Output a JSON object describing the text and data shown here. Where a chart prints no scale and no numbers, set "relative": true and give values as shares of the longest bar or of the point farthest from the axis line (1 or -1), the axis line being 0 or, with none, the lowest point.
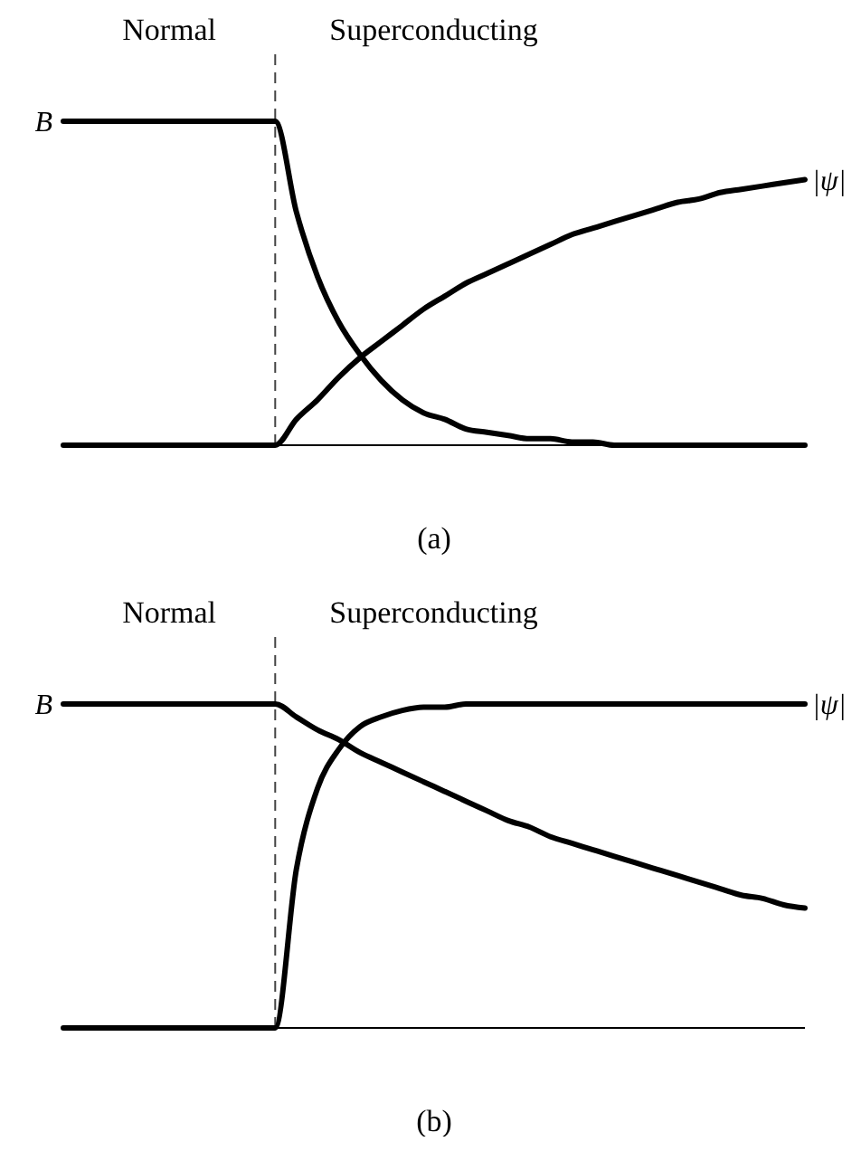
{
  "chart_data": [
    {
      "type": "line",
      "relative": true,
      "categories": [
        null,
        null,
        null,
        null,
        null,
        null,
        null,
        null,
        null,
        null,
        null,
        null,
        null,
        null,
        null,
        null,
        null,
        null,
        null,
        null,
        null,
        null,
        null,
        null,
        null,
        null,
        null,
        null,
        null,
        null,
        null,
        null,
        null,
        null,
        null,
        null
      ],
      "series": [
        {
          "name": "B",
          "color": "#000000",
          "values": [
            1,
            1,
            1,
            1,
            1,
            1,
            1,
            1,
            1,
            1,
            1,
            0.72,
            0.52,
            0.38,
            0.28,
            0.2,
            0.14,
            0.1,
            0.08,
            0.05,
            0.04,
            0.03,
            0.02,
            0.02,
            0.01,
            0.01,
            0,
            0,
            0,
            0,
            0,
            0,
            0,
            0,
            0,
            0
          ]
        },
        {
          "name": "|ψ|",
          "color": "#000000",
          "values": [
            0,
            0,
            0,
            0,
            0,
            0,
            0,
            0,
            0,
            0,
            0,
            0.08,
            0.14,
            0.21,
            0.27,
            0.32,
            0.37,
            0.42,
            0.46,
            0.5,
            0.53,
            0.56,
            0.59,
            0.62,
            0.65,
            0.67,
            0.69,
            0.71,
            0.73,
            0.75,
            0.76,
            0.78,
            0.79,
            0.8,
            0.81,
            0.82
          ]
        }
      ],
      "annotations": [
        "Normal",
        "Superconducting",
        "(a)"
      ]
    },
    {
      "type": "line",
      "relative": true,
      "categories": [
        null,
        null,
        null,
        null,
        null,
        null,
        null,
        null,
        null,
        null,
        null,
        null,
        null,
        null,
        null,
        null,
        null,
        null,
        null,
        null,
        null,
        null,
        null,
        null,
        null,
        null,
        null,
        null,
        null,
        null,
        null,
        null,
        null,
        null,
        null,
        null
      ],
      "series": [
        {
          "name": "B",
          "color": "#000000",
          "values": [
            1,
            1,
            1,
            1,
            1,
            1,
            1,
            1,
            1,
            1,
            1,
            0.96,
            0.92,
            0.89,
            0.85,
            0.82,
            0.79,
            0.76,
            0.73,
            0.7,
            0.67,
            0.64,
            0.62,
            0.59,
            0.57,
            0.55,
            0.53,
            0.51,
            0.49,
            0.47,
            0.45,
            0.43,
            0.41,
            0.4,
            0.38,
            0.37
          ]
        },
        {
          "name": "|ψ|",
          "color": "#000000",
          "values": [
            0,
            0,
            0,
            0,
            0,
            0,
            0,
            0,
            0,
            0,
            0,
            0.49,
            0.74,
            0.86,
            0.93,
            0.96,
            0.98,
            0.99,
            0.99,
            1,
            1,
            1,
            1,
            1,
            1,
            1,
            1,
            1,
            1,
            1,
            1,
            1,
            1,
            1,
            1,
            1
          ]
        }
      ],
      "annotations": [
        "Normal",
        "Superconducting",
        "(b)"
      ]
    }
  ]
}
